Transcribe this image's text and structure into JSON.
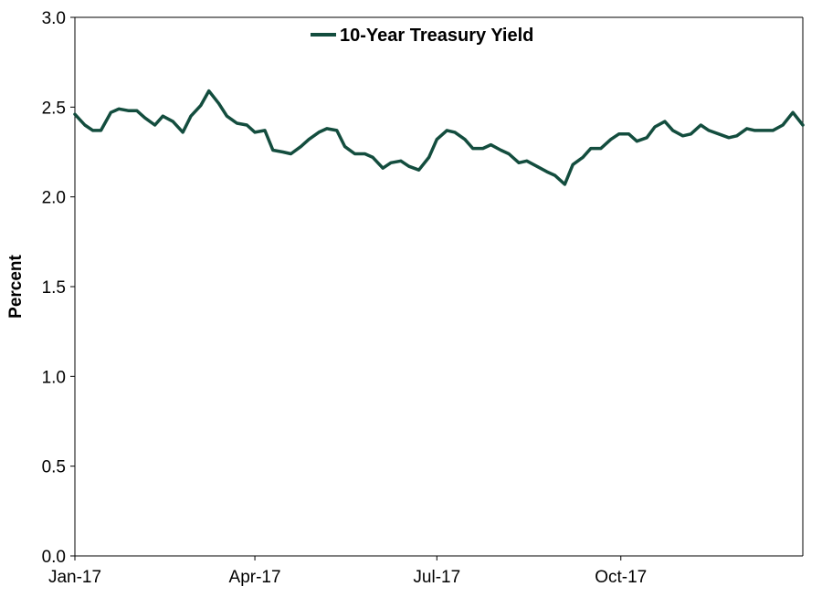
{
  "chart_data": {
    "type": "line",
    "title": "",
    "xlabel": "",
    "ylabel": "Percent",
    "ylim": [
      0,
      3.0
    ],
    "yticks": [
      0.0,
      0.5,
      1.0,
      1.5,
      2.0,
      2.5,
      3.0
    ],
    "ytick_labels": [
      "0.0",
      "0.5",
      "1.0",
      "1.5",
      "2.0",
      "2.5",
      "3.0"
    ],
    "xlim": [
      "2017-01-01",
      "2017-12-31"
    ],
    "xticks": [
      "2017-01-01",
      "2017-04-01",
      "2017-07-01",
      "2017-10-01"
    ],
    "xtick_labels": [
      "Jan-17",
      "Apr-17",
      "Jul-17",
      "Oct-17"
    ],
    "grid": false,
    "legend": "top-center",
    "colors": {
      "series": "#134d3e"
    },
    "series": [
      {
        "name": "10-Year Treasury Yield",
        "x": [
          "2017-01-01",
          "2017-01-06",
          "2017-01-10",
          "2017-01-14",
          "2017-01-19",
          "2017-01-23",
          "2017-01-28",
          "2017-02-01",
          "2017-02-05",
          "2017-02-10",
          "2017-02-14",
          "2017-02-19",
          "2017-02-24",
          "2017-02-28",
          "2017-03-05",
          "2017-03-09",
          "2017-03-14",
          "2017-03-18",
          "2017-03-23",
          "2017-03-28",
          "2017-04-01",
          "2017-04-06",
          "2017-04-10",
          "2017-04-15",
          "2017-04-19",
          "2017-04-24",
          "2017-04-28",
          "2017-05-03",
          "2017-05-07",
          "2017-05-12",
          "2017-05-16",
          "2017-05-21",
          "2017-05-26",
          "2017-05-30",
          "2017-06-04",
          "2017-06-08",
          "2017-06-13",
          "2017-06-17",
          "2017-06-22",
          "2017-06-27",
          "2017-07-01",
          "2017-07-06",
          "2017-07-10",
          "2017-07-15",
          "2017-07-19",
          "2017-07-24",
          "2017-07-28",
          "2017-08-02",
          "2017-08-06",
          "2017-08-11",
          "2017-08-15",
          "2017-08-20",
          "2017-08-25",
          "2017-08-29",
          "2017-09-03",
          "2017-09-07",
          "2017-09-12",
          "2017-09-16",
          "2017-09-21",
          "2017-09-26",
          "2017-09-30",
          "2017-10-05",
          "2017-10-09",
          "2017-10-14",
          "2017-10-18",
          "2017-10-23",
          "2017-10-27",
          "2017-11-01",
          "2017-11-05",
          "2017-11-10",
          "2017-11-14",
          "2017-11-19",
          "2017-11-24",
          "2017-11-28",
          "2017-12-03",
          "2017-12-07",
          "2017-12-12",
          "2017-12-16",
          "2017-12-21",
          "2017-12-26",
          "2017-12-31"
        ],
        "values": [
          2.46,
          2.4,
          2.37,
          2.37,
          2.47,
          2.49,
          2.48,
          2.48,
          2.44,
          2.4,
          2.45,
          2.42,
          2.36,
          2.45,
          2.51,
          2.59,
          2.52,
          2.45,
          2.41,
          2.4,
          2.36,
          2.37,
          2.26,
          2.25,
          2.24,
          2.28,
          2.32,
          2.36,
          2.38,
          2.37,
          2.28,
          2.24,
          2.24,
          2.22,
          2.16,
          2.19,
          2.2,
          2.17,
          2.15,
          2.22,
          2.32,
          2.37,
          2.36,
          2.32,
          2.27,
          2.27,
          2.29,
          2.26,
          2.24,
          2.19,
          2.2,
          2.17,
          2.14,
          2.12,
          2.07,
          2.18,
          2.22,
          2.27,
          2.27,
          2.32,
          2.35,
          2.35,
          2.31,
          2.33,
          2.39,
          2.42,
          2.37,
          2.34,
          2.35,
          2.4,
          2.37,
          2.35,
          2.33,
          2.34,
          2.38,
          2.37,
          2.37,
          2.37,
          2.4,
          2.47,
          2.4
        ]
      }
    ]
  }
}
